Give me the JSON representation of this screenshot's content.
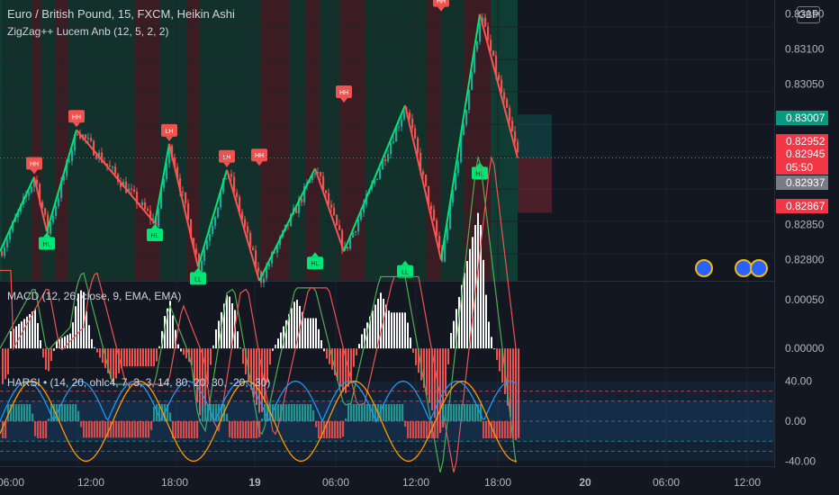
{
  "header": {
    "title": "Euro / British Pound, 15, FXCM, Heikin Ashi",
    "indicator": "ZigZag++ Lucem Anb (12, 5, 2, 2)",
    "currency": "GBP"
  },
  "colors": {
    "background": "#131722",
    "up": "#26a69a",
    "down": "#ef5350",
    "zigzag": "#00e676",
    "zigzag_down": "#ff5252",
    "pivot_high": "#ef5350",
    "pivot_low": "#00e676",
    "macd_line": "#4caf50",
    "signal_line": "#ef5350",
    "harsi_blue": "#2196f3",
    "harsi_orange": "#ff9800"
  },
  "price_axis": {
    "ticks": [
      "0.83150",
      "0.83100",
      "0.83050",
      "0.82850",
      "0.82800"
    ],
    "badges": [
      {
        "label": "0.83007",
        "color": "#089981"
      },
      {
        "label": "0.82952",
        "color": "#f23645"
      },
      {
        "label": "0.82945",
        "color": "#f23645"
      },
      {
        "label": "05:50",
        "color": "#f23645"
      },
      {
        "label": "0.82937",
        "color": "#787b86"
      },
      {
        "label": "0.82867",
        "color": "#f23645"
      }
    ]
  },
  "macd": {
    "label": "MACD (12, 26, close, 9, EMA, EMA)",
    "ticks": [
      "0.00050",
      "0.00000"
    ]
  },
  "harsi": {
    "label": "HARSI • (14, 20, ohlc4, 7, 3, 3, 14, 80, 20, 30, -20, -30)",
    "ticks": [
      "40.00",
      "0.00",
      "-40.00"
    ]
  },
  "time_axis": {
    "labels": [
      "06:00",
      "12:00",
      "18:00",
      "19",
      "06:00",
      "12:00",
      "18:00",
      "20",
      "06:00",
      "12:00"
    ]
  },
  "chart_data": {
    "type": "candlestick",
    "title": "Euro / British Pound, 15, FXCM, Heikin Ashi",
    "ylim": [
      0.8277,
      0.8317
    ],
    "zigzag_points": [
      {
        "label": "HH",
        "price": 0.82918
      },
      {
        "label": "HL",
        "price": 0.8284
      },
      {
        "label": "HH",
        "price": 0.82985
      },
      {
        "label": "HL",
        "price": 0.82852
      },
      {
        "label": "LH",
        "price": 0.82965
      },
      {
        "label": "LL",
        "price": 0.8279
      },
      {
        "label": "LH",
        "price": 0.82928
      },
      {
        "label": "HH",
        "price": 0.8293
      },
      {
        "label": "HL",
        "price": 0.82812
      },
      {
        "label": "HH",
        "price": 0.8302
      },
      {
        "label": "LL",
        "price": 0.828
      },
      {
        "label": "HH",
        "price": 0.8315
      },
      {
        "label": "HL",
        "price": 0.8294
      }
    ],
    "last_price": 0.82945,
    "macd_range": [
      -0.0001,
      0.0006
    ],
    "harsi_range": [
      -45,
      45
    ],
    "harsi_levels": [
      40,
      20,
      0,
      -20,
      -30,
      -40
    ]
  }
}
